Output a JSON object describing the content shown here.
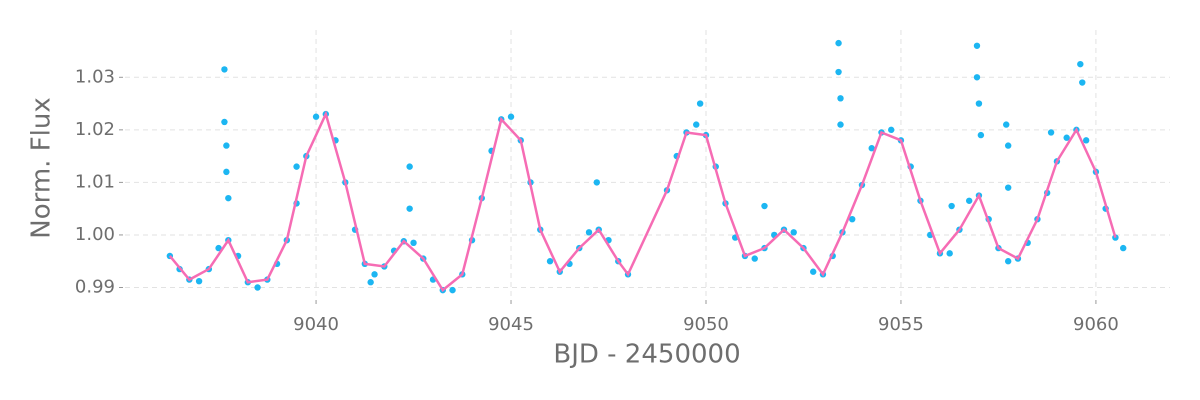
{
  "chart_data": {
    "type": "scatter",
    "xlabel": "BJD - 2450000",
    "ylabel": "Norm. Flux",
    "xlim": [
      9035.1,
      9061.9
    ],
    "ylim": [
      0.988,
      1.039
    ],
    "xticks": [
      9040,
      9045,
      9050,
      9055,
      9060
    ],
    "yticks": [
      0.99,
      {
        "value": 1.0,
        "label": "1.00"
      },
      1.01,
      1.02,
      1.03
    ],
    "grid": true,
    "series": [
      {
        "type": "scatter",
        "color": "#1cb6f2",
        "x": [
          9036.25,
          9036.5,
          9036.75,
          9037.0,
          9037.25,
          9037.5,
          9037.75,
          9038.0,
          9038.25,
          9038.5,
          9038.75,
          9039.0,
          9039.25,
          9039.5,
          9039.75,
          9040.0,
          9040.25,
          9040.5,
          9040.75,
          9041.0,
          9041.25,
          9041.5,
          9041.75,
          9042.0,
          9042.25,
          9042.5,
          9042.75,
          9043.0,
          9043.25,
          9043.5,
          9043.75,
          9044.0,
          9044.25,
          9044.5,
          9044.75,
          9045.0,
          9045.25,
          9045.5,
          9045.75,
          9046.0,
          9046.25,
          9046.5,
          9046.75,
          9047.0,
          9047.25,
          9047.5,
          9047.75,
          9048.0,
          9049.0,
          9049.25,
          9049.5,
          9049.75,
          9050.0,
          9050.25,
          9050.5,
          9050.75,
          9051.0,
          9051.25,
          9051.5,
          9051.75,
          9052.0,
          9052.25,
          9052.5,
          9052.75,
          9053.0,
          9053.25,
          9053.5,
          9053.75,
          9054.0,
          9054.25,
          9054.5,
          9054.75,
          9055.0,
          9055.25,
          9055.5,
          9055.75,
          9056.0,
          9056.25,
          9056.5,
          9056.75,
          9057.0,
          9057.25,
          9057.5,
          9057.75,
          9058.0,
          9058.25,
          9058.5,
          9058.75,
          9059.0,
          9059.25,
          9059.5,
          9059.75,
          9060.0,
          9060.25,
          9060.5,
          9060.7
        ],
        "values": [
          0.996,
          0.9935,
          0.9915,
          0.9912,
          0.9935,
          0.9975,
          0.999,
          0.996,
          0.991,
          0.99,
          0.9915,
          0.9945,
          0.999,
          1.006,
          1.015,
          1.0225,
          1.023,
          1.018,
          1.01,
          1.001,
          0.9945,
          0.9925,
          0.994,
          0.997,
          0.9988,
          0.9985,
          0.9955,
          0.9915,
          0.9895,
          0.9895,
          0.9925,
          0.999,
          1.007,
          1.016,
          1.022,
          1.0225,
          1.018,
          1.01,
          1.001,
          0.995,
          0.993,
          0.9945,
          0.9975,
          1.0005,
          1.001,
          0.999,
          0.995,
          0.9925,
          1.0085,
          1.015,
          1.0195,
          1.021,
          1.019,
          1.013,
          1.006,
          0.9995,
          0.996,
          0.9955,
          0.9975,
          1.0,
          1.001,
          1.0005,
          0.9975,
          0.993,
          0.9925,
          0.996,
          1.0005,
          1.003,
          1.0095,
          1.0165,
          1.0195,
          1.02,
          1.018,
          1.013,
          1.0065,
          1.0,
          0.9965,
          0.9965,
          1.001,
          1.0065,
          1.0075,
          1.003,
          0.9975,
          0.995,
          0.9955,
          0.9985,
          1.003,
          1.008,
          1.014,
          1.0185,
          1.02,
          1.018,
          1.012,
          1.005,
          0.9995,
          0.9975
        ]
      },
      {
        "type": "scatter",
        "color": "#1cb6f2",
        "x": [
          9037.65,
          9037.65,
          9037.7,
          9037.7,
          9037.75,
          9039.5,
          9042.4,
          9042.4,
          9047.2,
          9049.85,
          9053.4,
          9053.4,
          9053.45,
          9053.45,
          9056.95,
          9056.95,
          9057.0,
          9057.05,
          9057.7,
          9057.75,
          9057.75,
          9058.85,
          9059.6,
          9059.65,
          9041.4,
          9051.5,
          9056.3
        ],
        "values": [
          1.0315,
          1.0215,
          1.017,
          1.012,
          1.007,
          1.013,
          1.013,
          1.005,
          1.01,
          1.025,
          1.0365,
          1.031,
          1.026,
          1.021,
          1.036,
          1.03,
          1.025,
          1.019,
          1.021,
          1.017,
          1.009,
          1.0195,
          1.0325,
          1.029,
          0.991,
          1.0055,
          1.0055
        ]
      },
      {
        "type": "line",
        "color": "#f66cb4",
        "x": [
          9036.25,
          9036.75,
          9037.25,
          9037.75,
          9038.25,
          9038.75,
          9039.25,
          9039.75,
          9040.25,
          9040.75,
          9041.25,
          9041.75,
          9042.25,
          9042.75,
          9043.25,
          9043.75,
          9044.25,
          9044.75,
          9045.25,
          9045.75,
          9046.25,
          9046.75,
          9047.25,
          9047.75,
          9048.0,
          9049.0,
          9049.5,
          9050.0,
          9050.5,
          9051.0,
          9051.5,
          9052.0,
          9052.5,
          9053.0,
          9053.5,
          9054.0,
          9054.5,
          9055.0,
          9055.5,
          9056.0,
          9056.5,
          9057.0,
          9057.5,
          9058.0,
          9058.5,
          9059.0,
          9059.5,
          9060.0,
          9060.5
        ],
        "values": [
          0.996,
          0.9915,
          0.9935,
          0.999,
          0.991,
          0.9915,
          0.999,
          1.015,
          1.023,
          1.01,
          0.9945,
          0.994,
          0.9988,
          0.9955,
          0.9895,
          0.9925,
          1.007,
          1.022,
          1.018,
          1.001,
          0.993,
          0.9975,
          1.001,
          0.995,
          0.9925,
          1.0085,
          1.0195,
          1.019,
          1.006,
          0.996,
          0.9975,
          1.001,
          0.9975,
          0.9925,
          1.0005,
          1.0095,
          1.0195,
          1.018,
          1.0065,
          0.9965,
          1.001,
          1.0075,
          0.9975,
          0.9955,
          1.003,
          1.014,
          1.02,
          1.012,
          0.9995
        ]
      }
    ]
  }
}
